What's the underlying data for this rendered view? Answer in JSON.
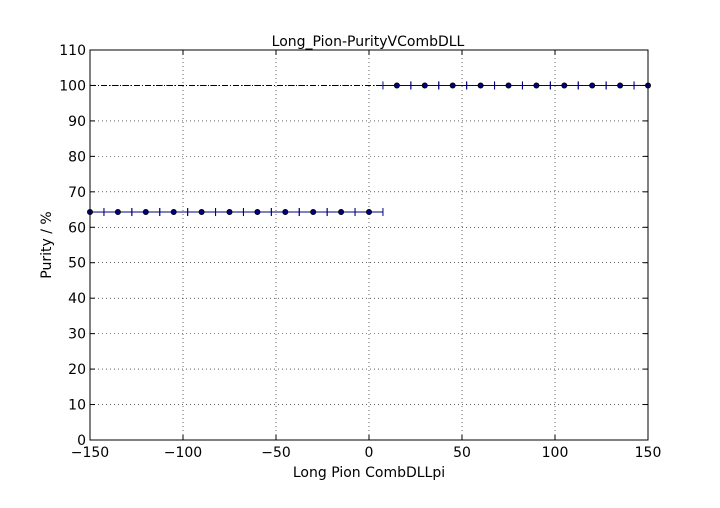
{
  "chart_data": {
    "type": "scatter",
    "title": "Long_Pion-PurityVCombDLL",
    "xlabel": "Long Pion CombDLLpi",
    "ylabel": "Purity / %",
    "xlim": [
      -150,
      150
    ],
    "ylim": [
      0,
      110
    ],
    "xticks": [
      -150,
      -100,
      -50,
      0,
      50,
      100,
      150
    ],
    "yticks": [
      0,
      10,
      20,
      30,
      40,
      50,
      60,
      70,
      80,
      90,
      100,
      110
    ],
    "xtick_labels": [
      "−150",
      "−100",
      "−50",
      "0",
      "50",
      "100",
      "150"
    ],
    "ytick_labels": [
      "0",
      "10",
      "20",
      "30",
      "40",
      "50",
      "60",
      "70",
      "80",
      "90",
      "100",
      "110"
    ],
    "grid": true,
    "reference_line_y": 100,
    "x_error_halfwidth": 7.5,
    "series": [
      {
        "color": "#000080",
        "points": [
          {
            "x": -150,
            "y": 64.3
          },
          {
            "x": -135,
            "y": 64.3
          },
          {
            "x": -120,
            "y": 64.3
          },
          {
            "x": -105,
            "y": 64.3
          },
          {
            "x": -90,
            "y": 64.3
          },
          {
            "x": -75,
            "y": 64.3
          },
          {
            "x": -60,
            "y": 64.3
          },
          {
            "x": -45,
            "y": 64.3
          },
          {
            "x": -30,
            "y": 64.3
          },
          {
            "x": -15,
            "y": 64.3
          },
          {
            "x": 0,
            "y": 64.3
          },
          {
            "x": 15,
            "y": 100
          },
          {
            "x": 30,
            "y": 100
          },
          {
            "x": 45,
            "y": 100
          },
          {
            "x": 60,
            "y": 100
          },
          {
            "x": 75,
            "y": 100
          },
          {
            "x": 90,
            "y": 100
          },
          {
            "x": 105,
            "y": 100
          },
          {
            "x": 120,
            "y": 100
          },
          {
            "x": 135,
            "y": 100
          },
          {
            "x": 150,
            "y": 100
          }
        ]
      }
    ]
  }
}
